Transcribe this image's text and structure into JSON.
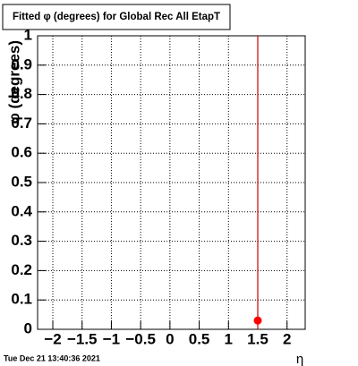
{
  "chart_data": {
    "type": "scatter",
    "title": "Fitted φ (degrees) for Global Rec All EtapT",
    "x_label": "η",
    "y_label": "φ (degrees)",
    "timestamp": "Tue Dec 21 13:40:36 2021",
    "x": [
      1.5
    ],
    "values": [
      0.03
    ],
    "errors": [
      1.2
    ],
    "color": "#ff0000",
    "error_color": "#cc0000",
    "xlim": [
      -2.26,
      2.31
    ],
    "ylim": [
      0,
      1
    ],
    "xticks": [
      {
        "value": -2,
        "label": "−2"
      },
      {
        "value": -1.5,
        "label": "−1.5"
      },
      {
        "value": -1,
        "label": "−1"
      },
      {
        "value": -0.5,
        "label": "−0.5"
      },
      0,
      0.5,
      1,
      1.5,
      2
    ],
    "yticks": [
      0,
      0.1,
      0.2,
      0.3,
      0.4,
      0.5,
      0.6,
      0.7,
      0.8,
      0.9,
      1
    ],
    "grid": true
  }
}
